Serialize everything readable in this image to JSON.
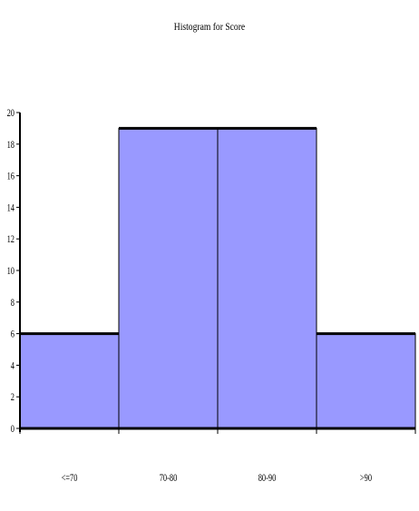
{
  "chart_data": {
    "type": "bar",
    "title": "Histogram for Score",
    "xlabel": "",
    "ylabel": "",
    "categories": [
      "<=70",
      "70-80",
      "80-90",
      ">90"
    ],
    "values": [
      6,
      19,
      19,
      6
    ],
    "ylim": [
      0,
      20
    ],
    "yticks": [
      0,
      2,
      4,
      6,
      8,
      10,
      12,
      14,
      16,
      18,
      20
    ],
    "grid": false,
    "legend": "none",
    "bar_color": "#9999ff",
    "bar_edge_color": "#000000"
  }
}
